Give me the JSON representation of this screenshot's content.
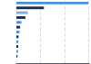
{
  "chart_data": {
    "type": "bar",
    "orientation": "horizontal",
    "categories": [
      null,
      null,
      null,
      null,
      null,
      null,
      null,
      null,
      null,
      null,
      null,
      null,
      null
    ],
    "values": [
      3400,
      1300,
      538,
      426,
      239,
      176,
      148,
      103,
      98,
      87,
      74,
      47,
      21
    ],
    "colors": [
      "#4a90d9",
      "#1a2d5a",
      "#7ab0e0",
      "#1a2d5a",
      "#4a90d9",
      "#1a2d5a",
      "#4a90d9",
      "#1a2d5a",
      "#4a90d9",
      "#1a2d5a",
      "#4a90d9",
      "#1a2d5a",
      "#a0c4e8"
    ],
    "xlim": [
      0,
      3434
    ],
    "xticks": [
      1133.3333333333333,
      2266.6666666666665,
      3400
    ],
    "grid": true,
    "tick_labels": false
  }
}
